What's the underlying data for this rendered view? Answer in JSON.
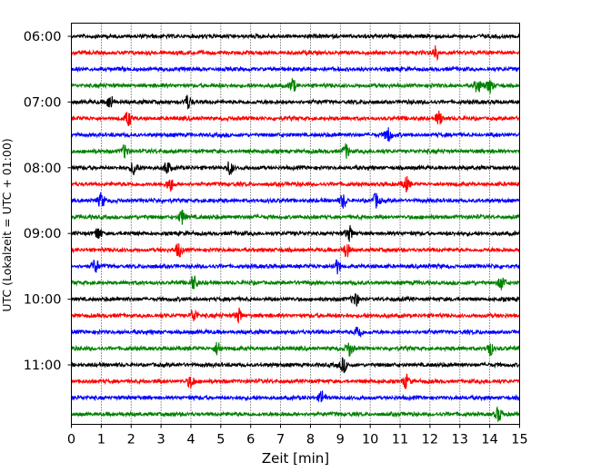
{
  "chart_data": {
    "type": "line",
    "title": "",
    "xlabel": "Zeit  [min]",
    "ylabel": "UTC (Lokalzeit = UTC + 01:00)",
    "xlim": [
      0,
      15
    ],
    "x_ticks": [
      0,
      1,
      2,
      3,
      4,
      5,
      6,
      7,
      8,
      9,
      10,
      11,
      12,
      13,
      14,
      15
    ],
    "grid": "vertical dotted lines at each minute",
    "y_ticks": [
      "06:00",
      "07:00",
      "08:00",
      "09:00",
      "10:00",
      "11:00"
    ],
    "trace_interval_min": 15,
    "color_cycle": [
      "#000000",
      "#ff0000",
      "#0000ff",
      "#008000"
    ],
    "series": [
      {
        "start": "06:00",
        "color": "#000000",
        "events_min": []
      },
      {
        "start": "06:15",
        "color": "#ff0000",
        "events_min": [
          12.2
        ]
      },
      {
        "start": "06:30",
        "color": "#0000ff",
        "events_min": []
      },
      {
        "start": "06:45",
        "color": "#008000",
        "events_min": [
          7.4,
          13.6,
          14.0
        ]
      },
      {
        "start": "07:00",
        "color": "#000000",
        "events_min": [
          1.3,
          3.9
        ]
      },
      {
        "start": "07:15",
        "color": "#ff0000",
        "events_min": [
          1.9,
          12.3
        ]
      },
      {
        "start": "07:30",
        "color": "#0000ff",
        "events_min": [
          10.6
        ]
      },
      {
        "start": "07:45",
        "color": "#008000",
        "events_min": [
          1.8,
          9.2
        ]
      },
      {
        "start": "08:00",
        "color": "#000000",
        "events_min": [
          2.1,
          3.2,
          5.3
        ]
      },
      {
        "start": "08:15",
        "color": "#ff0000",
        "events_min": [
          3.3,
          11.2
        ]
      },
      {
        "start": "08:30",
        "color": "#0000ff",
        "events_min": [
          1.0,
          9.1,
          10.2
        ]
      },
      {
        "start": "08:45",
        "color": "#008000",
        "events_min": [
          3.7
        ]
      },
      {
        "start": "09:00",
        "color": "#000000",
        "events_min": [
          0.9,
          9.3
        ]
      },
      {
        "start": "09:15",
        "color": "#ff0000",
        "events_min": [
          3.6,
          9.2
        ]
      },
      {
        "start": "09:30",
        "color": "#0000ff",
        "events_min": [
          0.8,
          8.9
        ]
      },
      {
        "start": "09:45",
        "color": "#008000",
        "events_min": [
          4.1,
          14.4
        ]
      },
      {
        "start": "10:00",
        "color": "#000000",
        "events_min": [
          9.5
        ]
      },
      {
        "start": "10:15",
        "color": "#ff0000",
        "events_min": [
          4.1,
          5.6
        ]
      },
      {
        "start": "10:30",
        "color": "#0000ff",
        "events_min": [
          9.6
        ]
      },
      {
        "start": "10:45",
        "color": "#008000",
        "events_min": [
          4.9,
          9.3,
          14.0
        ]
      },
      {
        "start": "11:00",
        "color": "#000000",
        "events_min": [
          9.1
        ]
      },
      {
        "start": "11:15",
        "color": "#ff0000",
        "events_min": [
          4.0,
          11.2
        ]
      },
      {
        "start": "11:30",
        "color": "#0000ff",
        "events_min": [
          8.4
        ]
      },
      {
        "start": "11:45",
        "color": "#008000",
        "events_min": [
          14.3
        ]
      }
    ]
  }
}
